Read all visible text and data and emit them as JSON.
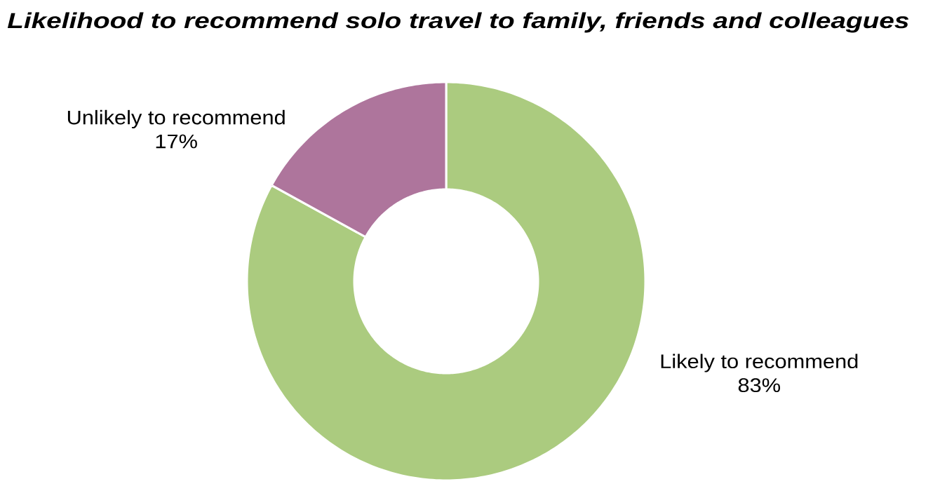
{
  "chart_data": {
    "type": "donut",
    "title": "Likelihood to recommend solo travel to family, friends and colleagues",
    "categories": [
      "Likely to recommend",
      "Unlikely to recommend"
    ],
    "values": [
      83,
      17
    ],
    "value_labels": [
      "83%",
      "17%"
    ],
    "colors": [
      "#abcb7f",
      "#ae759c"
    ]
  }
}
